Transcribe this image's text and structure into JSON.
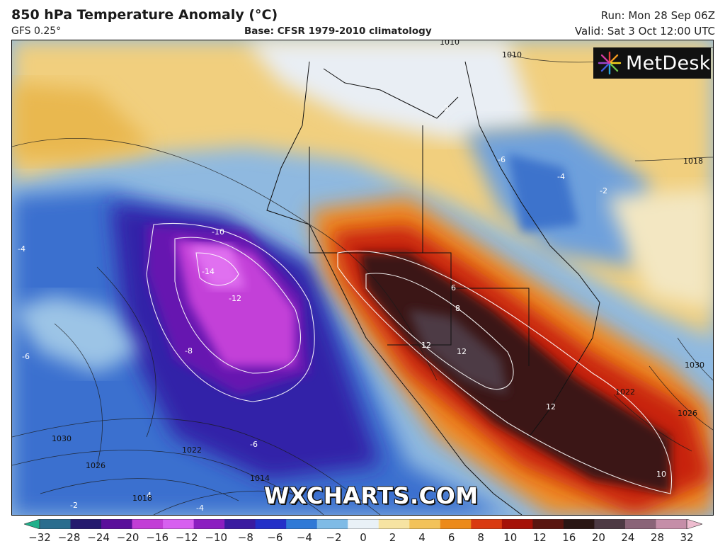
{
  "header": {
    "title": "850 hPa Temperature Anomaly (°C)",
    "model": "GFS 0.25°",
    "base": "Base: CFSR 1979-2010 climatology",
    "run": "Run: Mon 28 Sep 06Z",
    "valid": "Valid: Sat 3 Oct 12:00 UTC"
  },
  "logo": {
    "text": "MetDesk",
    "icon": "metdesk-starburst-icon"
  },
  "watermark": "WXCHARTS.COM",
  "colorbar": {
    "ticks": [
      "−32",
      "−28",
      "−24",
      "−20",
      "−16",
      "−12",
      "−10",
      "−8",
      "−6",
      "−4",
      "−2",
      "0",
      "2",
      "4",
      "6",
      "8",
      "10",
      "12",
      "16",
      "20",
      "24",
      "28",
      "32"
    ],
    "colors": [
      "#1fb08a",
      "#2a6d8e",
      "#241a6e",
      "#5a0f9a",
      "#c23ed6",
      "#d760f0",
      "#8b1ec0",
      "#3a1ba0",
      "#2330c8",
      "#2f79d6",
      "#7fbbe6",
      "#e9f1f7",
      "#f6e3a2",
      "#f2c25a",
      "#ec8a1a",
      "#d93a10",
      "#a51208",
      "#5a1610",
      "#2a1614",
      "#4d3a44",
      "#8a6478",
      "#c58ea8",
      "#eebccf"
    ]
  },
  "map": {
    "anomaly_labels": [
      "-10",
      "-14",
      "-12",
      "-8",
      "-6",
      "-6",
      "-4",
      "-2",
      "-4",
      "-2",
      "6",
      "8",
      "12",
      "12",
      "12",
      "10",
      "4",
      "-6",
      "-2",
      "-4"
    ],
    "isobar_labels": [
      "1010",
      "1010",
      "1018",
      "1030",
      "1026",
      "1022",
      "1030",
      "1026",
      "1022",
      "1014",
      "1018"
    ]
  }
}
